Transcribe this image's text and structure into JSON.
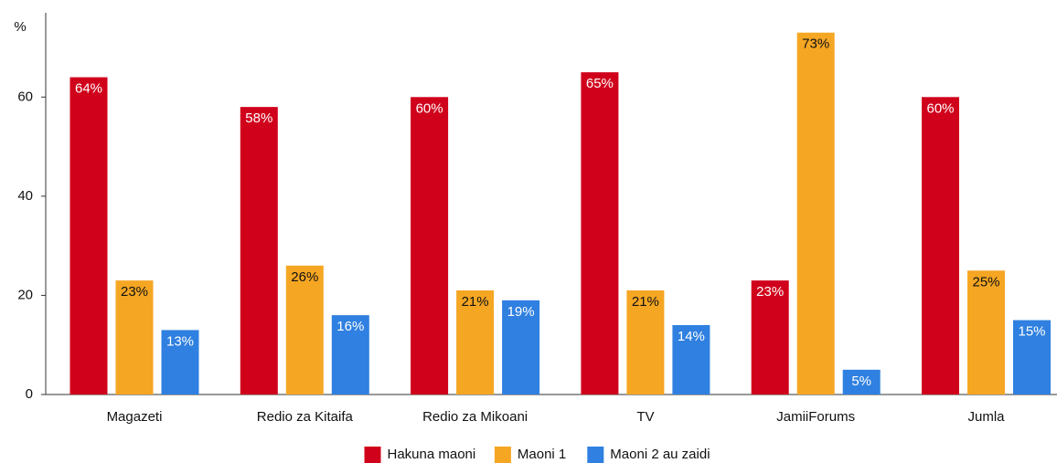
{
  "chart_data": {
    "type": "bar",
    "y_label": "%",
    "categories": [
      "Magazeti",
      "Redio za Kitaifa",
      "Redio za Mikoani",
      "TV",
      "JamiiForums",
      "Jumla"
    ],
    "series": [
      {
        "name": "Hakuna maoni",
        "color": "#d0021b",
        "label_color": "#ffffff",
        "values": [
          64,
          58,
          60,
          65,
          23,
          60
        ],
        "value_labels": [
          "64%",
          "58%",
          "60%",
          "65%",
          "23%",
          "60%"
        ]
      },
      {
        "name": "Maoni 1",
        "color": "#f5a623",
        "label_color": "#111111",
        "values": [
          23,
          26,
          21,
          21,
          73,
          25
        ],
        "value_labels": [
          "23%",
          "26%",
          "21%",
          "21%",
          "73%",
          "25%"
        ]
      },
      {
        "name": "Maoni 2 au zaidi",
        "color": "#2f80e0",
        "label_color": "#ffffff",
        "values": [
          13,
          16,
          19,
          14,
          5,
          15
        ],
        "value_labels": [
          "13%",
          "16%",
          "19%",
          "14%",
          "5%",
          "15%"
        ]
      }
    ],
    "ylim": [
      0,
      77
    ],
    "yticks": [
      0,
      20,
      40,
      60
    ],
    "grid": false,
    "legend": "bottom"
  }
}
